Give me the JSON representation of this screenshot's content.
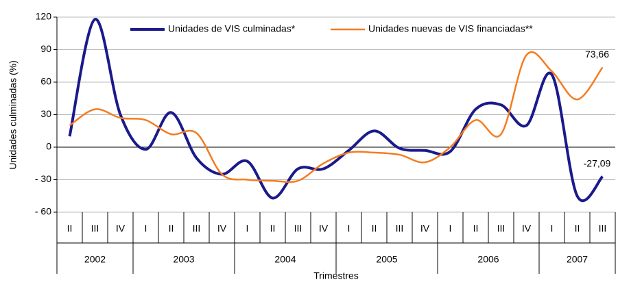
{
  "chart_data": {
    "type": "line",
    "y_label": "Unidades culminadas (%)",
    "x_label": "Trimestres",
    "categories": [
      "II",
      "III",
      "IV",
      "I",
      "II",
      "III",
      "IV",
      "I",
      "II",
      "III",
      "IV",
      "I",
      "II",
      "III",
      "IV",
      "I",
      "II",
      "III",
      "IV",
      "I",
      "II",
      "III"
    ],
    "years": [
      "2002",
      "2003",
      "2004",
      "2005",
      "2006",
      "2007"
    ],
    "series": [
      {
        "name": "Unidades de VIS culminadas*",
        "color": "#1a1a8c",
        "values": [
          10,
          118,
          30,
          -2,
          32,
          -10,
          -25,
          -13,
          -47,
          -20,
          -20,
          -3,
          15,
          -1,
          -3,
          -4,
          35,
          39,
          20,
          67,
          -45,
          -27.09
        ],
        "value_labels": [
          null,
          null,
          null,
          null,
          null,
          null,
          null,
          null,
          null,
          null,
          null,
          null,
          null,
          null,
          null,
          null,
          null,
          null,
          null,
          null,
          null,
          "-27,09"
        ]
      },
      {
        "name": "Unidades nuevas de VIS financiadas**",
        "color": "#f47c20",
        "values": [
          20,
          35,
          27,
          25,
          12,
          13,
          -25,
          -30,
          -31,
          -31,
          -15,
          -5,
          -5,
          -7,
          -14,
          0,
          25,
          12,
          85,
          70,
          44,
          73.66
        ],
        "value_labels": [
          null,
          null,
          null,
          null,
          null,
          null,
          null,
          null,
          null,
          null,
          null,
          null,
          null,
          null,
          null,
          null,
          null,
          null,
          null,
          null,
          null,
          "73,66"
        ]
      }
    ],
    "ylim": [
      -60,
      120
    ],
    "yticks": [
      {
        "value": -60,
        "label": "- 60"
      },
      {
        "value": -30,
        "label": "- 30"
      },
      0,
      30,
      60,
      90,
      120
    ],
    "grid": true,
    "legend": "top"
  }
}
